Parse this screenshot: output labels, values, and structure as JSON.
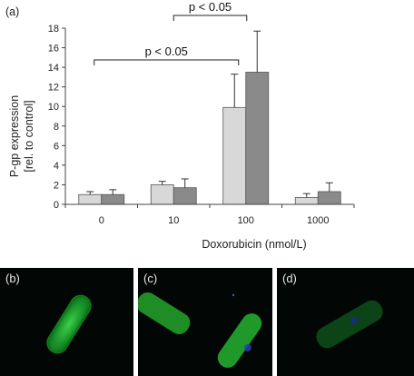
{
  "panel_a_label": "(a)",
  "chart_data": {
    "type": "bar",
    "categories": [
      "0",
      "10",
      "100",
      "1000"
    ],
    "series": [
      {
        "values": [
          1.0,
          2.0,
          9.9,
          0.7
        ],
        "errors": [
          0.3,
          0.35,
          3.4,
          0.4
        ],
        "color": "#d8d8d8"
      },
      {
        "values": [
          1.0,
          1.7,
          13.5,
          1.3
        ],
        "errors": [
          0.5,
          0.9,
          4.2,
          0.9
        ],
        "color": "#8a8a8a"
      }
    ],
    "ylabel_line1": "P-gp expression",
    "ylabel_line2": "[rel. to control]",
    "xlabel": "Doxorubicin (nmol/L)",
    "ylim": [
      0,
      18
    ],
    "yticks": [
      "0",
      "2",
      "4",
      "6",
      "8",
      "10",
      "12",
      "14",
      "16",
      "18"
    ],
    "grid": false,
    "significance": [
      {
        "text": "p < 0.05",
        "from": "0",
        "to": "100"
      },
      {
        "text": "p < 0.05",
        "from": "10",
        "to": "100"
      }
    ]
  },
  "micrographs": [
    {
      "label": "(b)",
      "stain_color": "#1bb02a"
    },
    {
      "label": "(c)",
      "stain_color": "#1a9a28"
    },
    {
      "label": "(d)",
      "stain_color": "#0f5a20"
    }
  ]
}
